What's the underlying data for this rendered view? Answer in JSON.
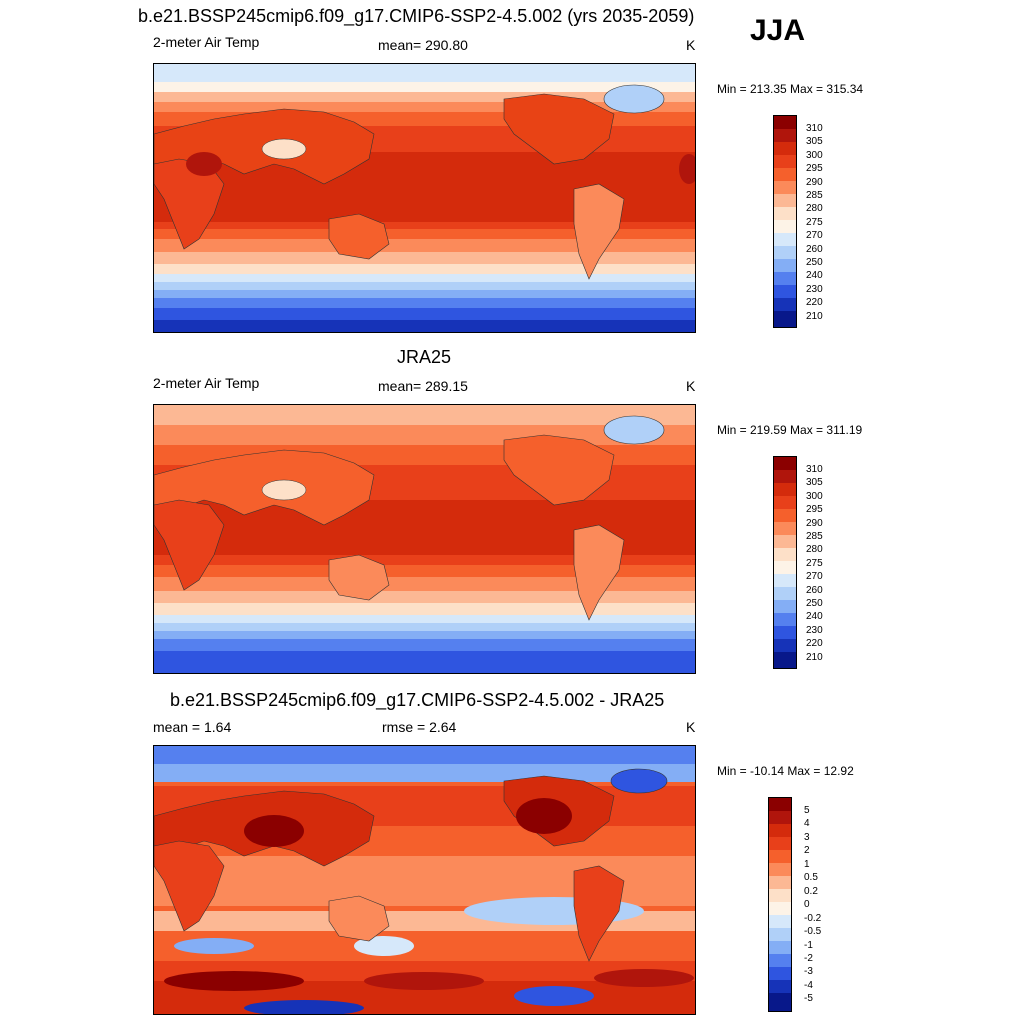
{
  "season": "JJA",
  "panels": [
    {
      "title": "b.e21.BSSP245cmip6.f09_g17.CMIP6-SSP2-4.5.002 (yrs 2035-2059)",
      "left_label": "2-meter Air Temp",
      "center_label": "mean= 290.80",
      "units": "K",
      "minmax": "Min = 213.35 Max = 315.34",
      "colorbar_labels": [
        "310",
        "305",
        "300",
        "295",
        "290",
        "285",
        "280",
        "275",
        "270",
        "260",
        "250",
        "240",
        "230",
        "220",
        "210"
      ],
      "colorbar_colors": [
        "#8b0000",
        "#b0150c",
        "#d42b0c",
        "#e8401a",
        "#f5602c",
        "#fb8a5a",
        "#fcb894",
        "#fde0c8",
        "#fdf3e7",
        "#d6e8fa",
        "#b0d0f8",
        "#84aef5",
        "#5580ef",
        "#2f55e0",
        "#1633b8",
        "#08188a"
      ]
    },
    {
      "title": "JRA25",
      "left_label": "2-meter Air Temp",
      "center_label": "mean= 289.15",
      "units": "K",
      "minmax": "Min = 219.59 Max = 311.19",
      "colorbar_labels": [
        "310",
        "305",
        "300",
        "295",
        "290",
        "285",
        "280",
        "275",
        "270",
        "260",
        "250",
        "240",
        "230",
        "220",
        "210"
      ],
      "colorbar_colors": [
        "#8b0000",
        "#b0150c",
        "#d42b0c",
        "#e8401a",
        "#f5602c",
        "#fb8a5a",
        "#fcb894",
        "#fde0c8",
        "#fdf3e7",
        "#d6e8fa",
        "#b0d0f8",
        "#84aef5",
        "#5580ef",
        "#2f55e0",
        "#1633b8",
        "#08188a"
      ]
    },
    {
      "title": "b.e21.BSSP245cmip6.f09_g17.CMIP6-SSP2-4.5.002 - JRA25",
      "left_label": "mean =   1.64",
      "center_label": "rmse =   2.64",
      "units": "K",
      "minmax": "Min = -10.14 Max =  12.92",
      "colorbar_labels": [
        "5",
        "4",
        "3",
        "2",
        "1",
        "0.5",
        "0.2",
        "0",
        "-0.2",
        "-0.5",
        "-1",
        "-2",
        "-3",
        "-4",
        "-5"
      ],
      "colorbar_colors": [
        "#8b0000",
        "#b0150c",
        "#d42b0c",
        "#e8401a",
        "#f5602c",
        "#fb8a5a",
        "#fcb894",
        "#fde0c8",
        "#fdf3e7",
        "#d6e8fa",
        "#b0d0f8",
        "#84aef5",
        "#5580ef",
        "#2f55e0",
        "#1633b8",
        "#08188a"
      ]
    }
  ]
}
